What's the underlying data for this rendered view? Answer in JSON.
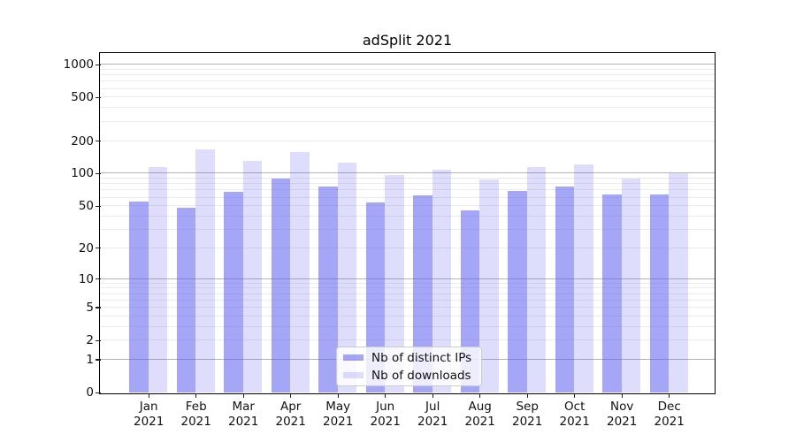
{
  "chart_data": {
    "type": "bar",
    "title": "adSplit 2021",
    "categories": [
      "Jan",
      "Feb",
      "Mar",
      "Apr",
      "May",
      "Jun",
      "Jul",
      "Aug",
      "Sep",
      "Oct",
      "Nov",
      "Dec"
    ],
    "category_year": "2021",
    "series": [
      {
        "name": "Nb of distinct IPs",
        "color": "rgba(92,92,238,0.55)",
        "values": [
          55,
          48,
          67,
          89,
          76,
          54,
          62,
          45,
          68,
          75,
          63,
          63
        ]
      },
      {
        "name": "Nb of downloads",
        "color": "rgba(92,92,238,0.20)",
        "values": [
          113,
          165,
          130,
          157,
          125,
          97,
          107,
          87,
          113,
          120,
          90,
          100
        ]
      }
    ],
    "yscale": "log1p",
    "yticks": [
      1000,
      500,
      200,
      100,
      50,
      20,
      10,
      5,
      2,
      1,
      0
    ],
    "ylim": [
      0,
      1283
    ],
    "xlabel": "",
    "ylabel": "",
    "grid": "both-horizontal",
    "legend_position": "lower center",
    "colors": {
      "major_grid": "#b3b3b3",
      "minor_grid": "#ebebeb",
      "spine": "#000000",
      "background": "#ffffff",
      "ips_bar": "rgba(92,92,238,0.55)",
      "downloads_bar": "rgba(92,92,238,0.20)"
    }
  }
}
